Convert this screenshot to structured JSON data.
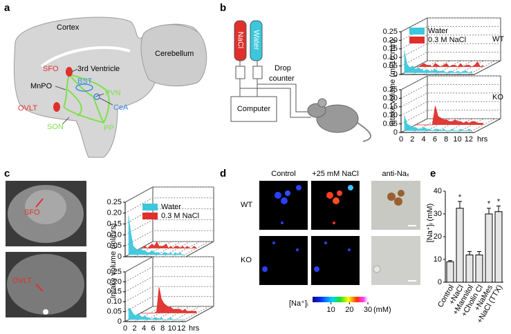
{
  "panel_labels": [
    "a",
    "b",
    "c",
    "d",
    "e"
  ],
  "panel_a": {
    "labels": [
      "Cortex",
      "Cerebellum",
      "SFO",
      "3rd Ventricle",
      "MnPO",
      "BST",
      "PVN",
      "OVLT",
      "CeA",
      "SON",
      "PP"
    ]
  },
  "panel_b_schematic": {
    "tubes": [
      "NaCl",
      "Water"
    ],
    "device": [
      "Drop",
      "counter"
    ],
    "computer": "Computer"
  },
  "panel_c_images": {
    "labels": [
      "SFO",
      "OVLT"
    ]
  },
  "panel_d": {
    "columns": [
      "Control",
      "+25 mM NaCl",
      "anti-Naₓ"
    ],
    "rows": [
      "WT",
      "KO"
    ],
    "colorbar": {
      "label": "[Na⁺]ᵢ",
      "unit": "(mM)",
      "lim": [
        0,
        30
      ],
      "ticks": [
        10,
        20,
        30
      ]
    }
  },
  "chart_data": [
    {
      "type": "ribbon3d",
      "y_label": "Intake volume (ml/10 min)",
      "x_label": "hrs",
      "xlim": [
        0,
        13
      ],
      "xticks": [
        0,
        2,
        4,
        6,
        8,
        10,
        12
      ],
      "ylim": [
        0,
        0.25
      ],
      "yticks": [
        0,
        0.05,
        {
          "value": 0.1,
          "label": "0.10"
        },
        0.15,
        {
          "value": 0.2,
          "label": "0.20"
        },
        0.25
      ],
      "x": [
        0,
        0.5,
        1,
        1.5,
        2,
        2.5,
        3,
        3.5,
        4,
        4.5,
        5,
        5.5,
        6,
        6.5,
        7,
        7.5,
        8,
        8.5,
        9,
        9.5,
        10,
        10.5,
        11,
        11.5,
        12
      ],
      "series": [
        {
          "name": "Water",
          "color": "#3cc8dc"
        },
        {
          "name": "0.3 M NaCl",
          "color": "#e0302c"
        }
      ],
      "subplots": [
        {
          "label": "WT",
          "values": [
            [
              0.13,
              0.05,
              0.03,
              0.04,
              0.02,
              0.03,
              0.02,
              0.01,
              0.02,
              0.01,
              0.01,
              0.02,
              0.01,
              0.01,
              0.01,
              0,
              0.01,
              0.01,
              0,
              0.01,
              0,
              0.01,
              0.01,
              0,
              0.01
            ],
            [
              0,
              0,
              0.01,
              0.02,
              0.01,
              0.01,
              0,
              0.02,
              0.01,
              0,
              0.01,
              0.02,
              0,
              0.01,
              0.01,
              0,
              0.02,
              0,
              0.01,
              0.01,
              0,
              0.01,
              0.03,
              0,
              0.01
            ]
          ]
        },
        {
          "label": "KO",
          "values": [
            [
              0.09,
              0.04,
              0.03,
              0.02,
              0.02,
              0.01,
              0.01,
              0.02,
              0.01,
              0.01,
              0,
              0.01,
              0.01,
              0,
              0.01,
              0,
              0,
              0.01,
              0,
              0,
              0.01,
              0,
              0,
              0.01,
              0
            ],
            [
              0,
              0,
              0,
              0,
              0,
              0,
              0,
              0.11,
              0.05,
              0.04,
              0.03,
              0.03,
              0.02,
              0.02,
              0.03,
              0.02,
              0.02,
              0.01,
              0.02,
              0.01,
              0.02,
              0.02,
              0.01,
              0.01,
              0.01
            ]
          ]
        }
      ]
    },
    {
      "type": "ribbon3d",
      "y_label": "Intake volume (ml/hrs)",
      "x_label": "hrs",
      "xlim": [
        0,
        13
      ],
      "xticks": [
        0,
        2,
        4,
        6,
        8,
        10,
        12
      ],
      "ylim": [
        0,
        0.25
      ],
      "yticks": [
        0,
        0.05,
        {
          "value": 0.1,
          "label": "0.10"
        },
        0.15,
        {
          "value": 0.2,
          "label": "0.20"
        },
        0.25
      ],
      "x": [
        0,
        0.5,
        1,
        1.5,
        2,
        2.5,
        3,
        3.5,
        4,
        4.5,
        5,
        5.5,
        6,
        6.5,
        7,
        7.5,
        8,
        8.5,
        9,
        9.5,
        10,
        10.5,
        11,
        11.5,
        12
      ],
      "series": [
        {
          "name": "Water",
          "color": "#3cc8dc"
        },
        {
          "name": "0.3 M NaCl",
          "color": "#e0302c"
        }
      ],
      "subplots": [
        {
          "values": [
            [
              0.18,
              0.1,
              0.04,
              0.03,
              0.02,
              0.03,
              0.02,
              0.02,
              0.01,
              0.01,
              0.02,
              0.01,
              0.01,
              0.01,
              0,
              0.01,
              0.01,
              0,
              0.01,
              0,
              0.01,
              0,
              0.01,
              0,
              0
            ],
            [
              0,
              0,
              0.01,
              0,
              0.01,
              0.02,
              0.01,
              0.03,
              0.01,
              0.01,
              0.01,
              0.02,
              0,
              0.01,
              0,
              0.01,
              0.01,
              0,
              0.01,
              0,
              0.01,
              0,
              0,
              0.01,
              0
            ]
          ]
        },
        {
          "values": [
            [
              0.06,
              0.05,
              0.03,
              0.02,
              0.03,
              0.02,
              0.01,
              0.02,
              0.01,
              0.01,
              0,
              0.01,
              0.01,
              0,
              0.01,
              0,
              0,
              0,
              0.01,
              0,
              0,
              0,
              0,
              0,
              0
            ],
            [
              0,
              0,
              0,
              0,
              0,
              0,
              0,
              0.01,
              0.13,
              0.07,
              0.05,
              0.04,
              0.03,
              0.03,
              0.02,
              0.02,
              0.02,
              0.02,
              0.01,
              0.02,
              0.01,
              0.01,
              0.01,
              0.01,
              0.01
            ]
          ]
        }
      ]
    },
    {
      "type": "bar",
      "y_label": "[Na⁺]ᵢ (mM)",
      "categories": [
        "Control",
        "+NaCl",
        "+Mannitol",
        "+Cholin Cl",
        "+NaMes",
        "+NaCl (TTX)"
      ],
      "values": [
        9,
        32.5,
        12,
        12,
        30,
        31
      ],
      "errors": [
        0.5,
        3,
        1.5,
        1.5,
        2.5,
        2.5
      ],
      "annotations": [
        null,
        "*",
        null,
        null,
        "*",
        "*"
      ],
      "ylim": [
        0,
        40
      ],
      "yticks": [
        0,
        10,
        20,
        30,
        40
      ],
      "color": "#e6e6e6"
    }
  ]
}
